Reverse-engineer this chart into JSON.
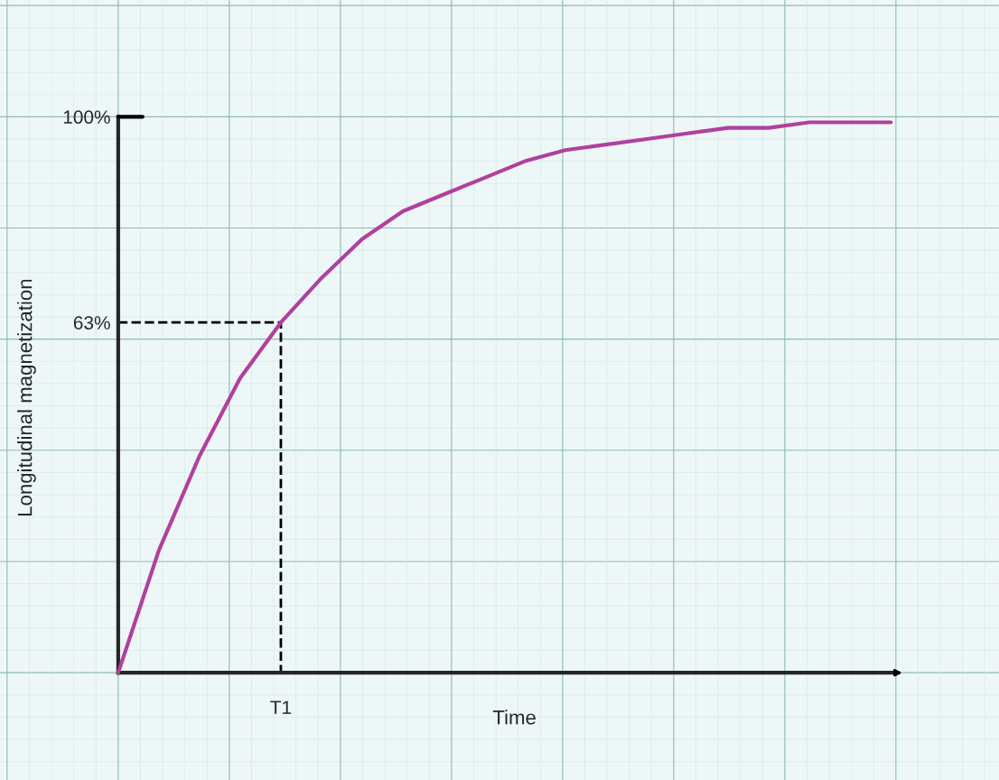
{
  "chart_data": {
    "type": "line",
    "xlabel": "Time",
    "ylabel": "Longitudinal magnetization",
    "categories": [
      null,
      null,
      null,
      null,
      null,
      null,
      null,
      null,
      null,
      null,
      null,
      null,
      null,
      null,
      null,
      null,
      null,
      null,
      null,
      null
    ],
    "series": [
      {
        "color": "#b0409e",
        "values": [
          0,
          22,
          39,
          53,
          63,
          71,
          78,
          83,
          86,
          89,
          92,
          94,
          95,
          96,
          97,
          98,
          98,
          99,
          99,
          99
        ]
      }
    ],
    "ylim": [
      -19.3,
      121
    ],
    "yticks": [
      {
        "value": 63,
        "label": "63%"
      },
      {
        "value": 100,
        "label": "100%"
      }
    ],
    "ref_lines": [
      {
        "axis": "y",
        "value": 63,
        "color": "#000000",
        "line_style": "dashed"
      }
    ],
    "annotations": [
      "T1"
    ],
    "grid": true,
    "marker": "none",
    "line_style": "solid"
  }
}
